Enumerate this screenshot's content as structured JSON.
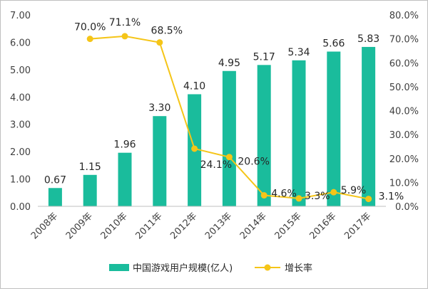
{
  "chart_data": {
    "type": "bar",
    "categories": [
      "2008年",
      "2009年",
      "2010年",
      "2011年",
      "2012年",
      "2013年",
      "2014年",
      "2015年",
      "2016年",
      "2017年"
    ],
    "series": [
      {
        "name": "中国游戏用户规模(亿人)",
        "kind": "bar",
        "axis": "left",
        "color": "#1ABC9C",
        "values": [
          0.67,
          1.15,
          1.96,
          3.3,
          4.1,
          4.95,
          5.17,
          5.34,
          5.66,
          5.83
        ],
        "labels": [
          "0.67",
          "1.15",
          "1.96",
          "3.30",
          "4.10",
          "4.95",
          "5.17",
          "5.34",
          "5.66",
          "5.83"
        ]
      },
      {
        "name": "增长率",
        "kind": "line",
        "axis": "right",
        "color": "#F5C518",
        "values": [
          null,
          70.0,
          71.1,
          68.5,
          24.1,
          20.6,
          4.6,
          3.3,
          5.9,
          3.1
        ],
        "labels": [
          null,
          "70.0%",
          "71.1%",
          "68.5%",
          "24.1%",
          "20.6%",
          "4.6%",
          "3.3%",
          "5.9%",
          "3.1%"
        ]
      }
    ],
    "y_left": {
      "ylim": [
        0,
        7
      ],
      "ticks": [
        "0.00",
        "1.00",
        "2.00",
        "3.00",
        "4.00",
        "5.00",
        "6.00",
        "7.00"
      ]
    },
    "y_right": {
      "ylim": [
        0,
        80
      ],
      "ticks": [
        "0.0%",
        "10.0%",
        "20.0%",
        "30.0%",
        "40.0%",
        "50.0%",
        "60.0%",
        "70.0%",
        "80.0%"
      ]
    },
    "grid": false,
    "legend_position": "bottom"
  }
}
